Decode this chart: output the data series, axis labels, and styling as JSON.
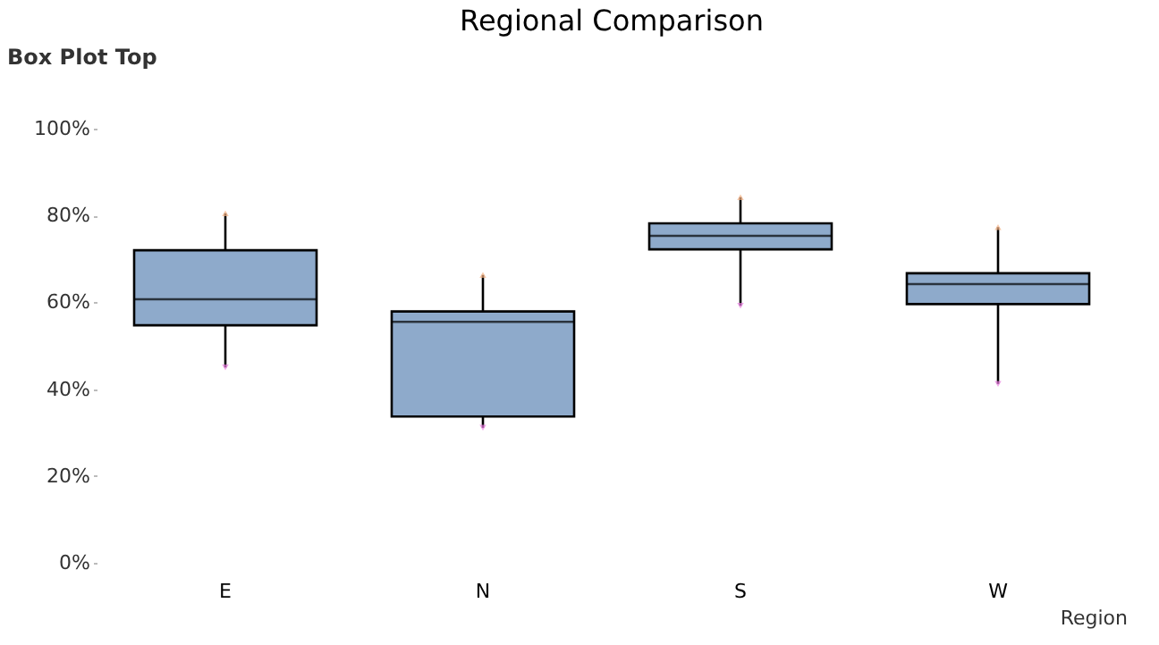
{
  "chart_data": {
    "type": "box",
    "title": "Regional Comparison",
    "xlabel": "Region",
    "annotations": [
      "Box Plot Top"
    ],
    "categories": [
      "E",
      "N",
      "S",
      "W"
    ],
    "color": "#8eaacb",
    "boxes": [
      {
        "low": 45,
        "q1": 54.7,
        "median": 60.7,
        "q3": 72,
        "high": 80.5,
        "outliers": [
          80.5,
          45
        ]
      },
      {
        "low": 31.1,
        "q1": 33.7,
        "median": 55.5,
        "q3": 57.9,
        "high": 66.3,
        "outliers": [
          66.3,
          31.1
        ]
      },
      {
        "low": 59.2,
        "q1": 72.2,
        "median": 75.3,
        "q3": 78.2,
        "high": 84.2,
        "outliers": [
          84.2,
          59.2
        ]
      },
      {
        "low": 41.2,
        "q1": 59.6,
        "median": 64.2,
        "q3": 66.7,
        "high": 77.3,
        "outliers": [
          77.3,
          41.2
        ]
      }
    ],
    "ylim": [
      0,
      100
    ],
    "yticks": [
      {
        "value": 0,
        "label": "0%"
      },
      {
        "value": 20,
        "label": "20%"
      },
      {
        "value": 40,
        "label": "40%"
      },
      {
        "value": 60,
        "label": "60%"
      },
      {
        "value": 80,
        "label": "80%"
      },
      {
        "value": 100,
        "label": "100%"
      }
    ],
    "grid": false
  }
}
